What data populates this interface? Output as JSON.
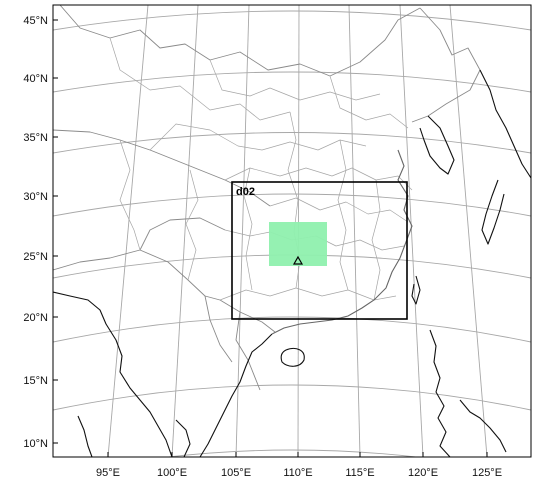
{
  "map": {
    "lat_labels": [
      "45°N",
      "40°N",
      "35°N",
      "30°N",
      "25°N",
      "20°N",
      "15°N",
      "10°N"
    ],
    "lon_labels": [
      "95°E",
      "100°E",
      "105°E",
      "110°E",
      "115°E",
      "120°E",
      "125°E"
    ],
    "domain_d02": {
      "label": "d02",
      "stroke": "#000000"
    },
    "study_area": {
      "fill": "#8ff0ae"
    },
    "site_marker": {
      "icon": "triangle-outline-icon",
      "color": "#000000"
    },
    "colors": {
      "graticule": "#a8a8a8",
      "coastline": "#111111",
      "borders": "#8a8a8a",
      "provinces": "#a6a6a6"
    }
  }
}
